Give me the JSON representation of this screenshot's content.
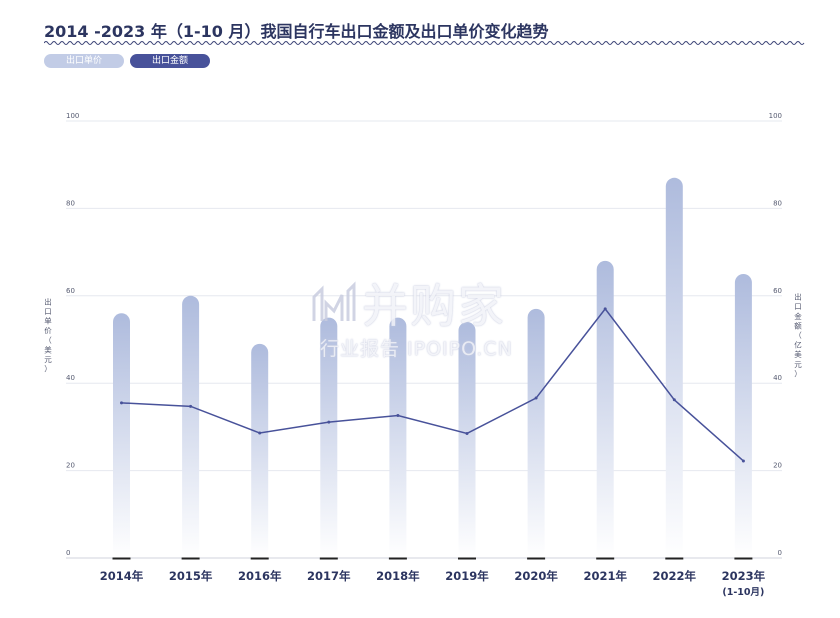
{
  "title": "2014 -2023 年（1-10 月）我国自行车出口金额及出口单价变化趋势",
  "legend": [
    {
      "label": "出口单价",
      "color": "#c2cce6"
    },
    {
      "label": "出口金额",
      "color": "#48529a"
    }
  ],
  "watermark": {
    "main": "并购家",
    "sub": "行业报告 IPOIPO.CN"
  },
  "chart_data": {
    "type": "bar",
    "categories": [
      "2014年",
      "2015年",
      "2016年",
      "2017年",
      "2018年",
      "2019年",
      "2020年",
      "2021年",
      "2022年",
      "2023年\n(1-10月)"
    ],
    "y_left": {
      "label": "出口单价（美元）",
      "ticks": [
        "100",
        "80",
        "60",
        "40",
        "20",
        "0"
      ],
      "range": [
        0,
        100
      ]
    },
    "y_right": {
      "label": "出口金额（亿美元）",
      "ticks": [
        "100",
        "80",
        "60",
        "40",
        "20",
        "0"
      ],
      "range": [
        0,
        100
      ]
    },
    "grid": true,
    "series": [
      {
        "name": "出口单价",
        "type": "bar",
        "color": "#c2cce6",
        "values": [
          56,
          60,
          49,
          55,
          55,
          54,
          57,
          68,
          87,
          65
        ]
      },
      {
        "name": "出口金额",
        "type": "line",
        "color": "#48529a",
        "values": [
          35.5,
          34.7,
          28.6,
          31.1,
          32.6,
          28.5,
          36.6,
          57.0,
          36.2,
          22.2
        ]
      }
    ]
  }
}
